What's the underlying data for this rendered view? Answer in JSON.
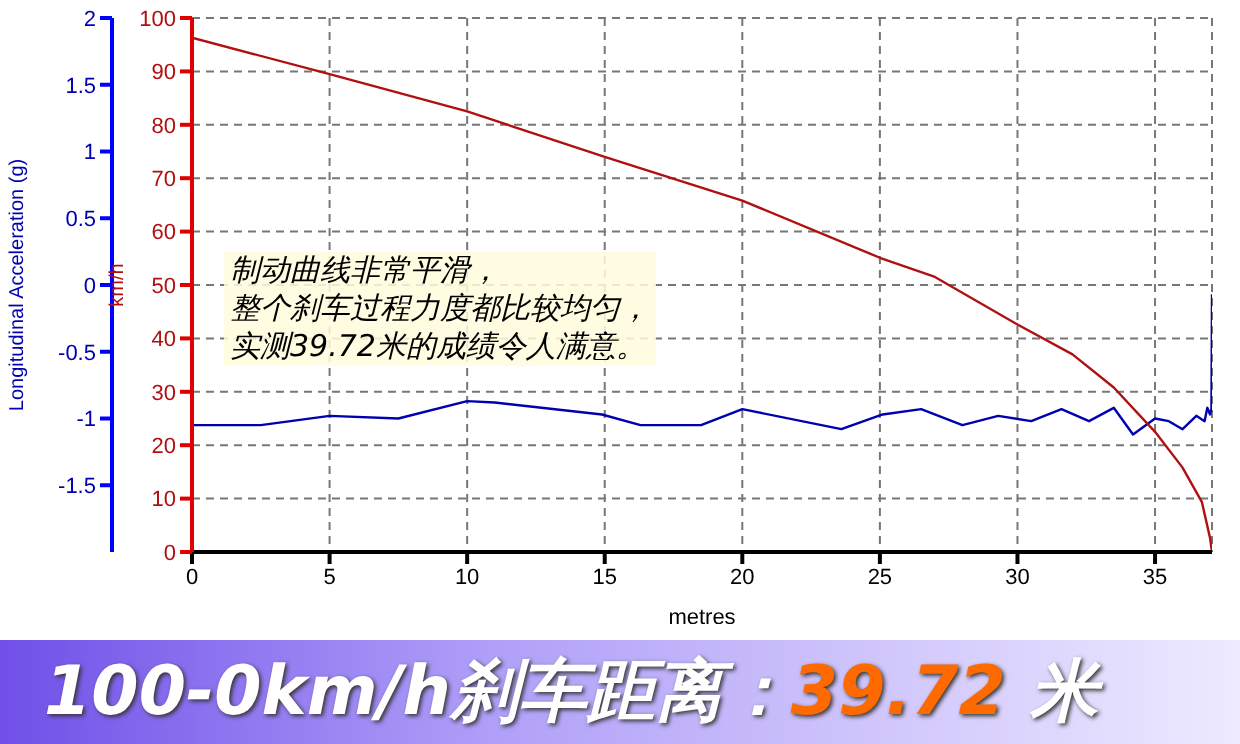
{
  "chart_data": {
    "type": "line",
    "title": "100-0km/h刹车距离：39.72 米",
    "xlabel": "metres",
    "ylabel": "Longitudinal Acceleration (g)",
    "y2label": "km/h",
    "annotations": [
      "制动曲线非常平滑，",
      "整个刹车过程力度都比较均匀，",
      "实测39.72米的成绩令人满意。"
    ],
    "xlim": [
      0,
      37.07
    ],
    "xticks": [
      0,
      5,
      10,
      15,
      20,
      25,
      30,
      35
    ],
    "ylim": [
      -2,
      2
    ],
    "yticks": [
      -1.5,
      -1,
      -0.5,
      0,
      0.5,
      1,
      1.5,
      2
    ],
    "y2lim": [
      0,
      100
    ],
    "y2ticks": [
      0,
      10,
      20,
      30,
      40,
      50,
      60,
      70,
      80,
      90,
      100
    ],
    "grid": true,
    "legend": false,
    "marker": "none",
    "line_style": "solid",
    "series": [
      {
        "color": "#0000b0",
        "x": [
          0,
          2.5,
          5,
          7.5,
          10,
          11,
          14.9,
          16.3,
          18.5,
          20,
          23.6,
          25.1,
          26.5,
          28,
          29.3,
          30.5,
          31.6,
          32.6,
          33.5,
          34.2,
          35,
          35.5,
          36,
          36.5,
          36.8,
          36.9,
          37,
          37.05,
          37.07
        ],
        "values": [
          -1.05,
          -1.05,
          -0.98,
          -1,
          -0.87,
          -0.88,
          -0.97,
          -1.05,
          -1.05,
          -0.93,
          -1.08,
          -0.97,
          -0.93,
          -1.05,
          -0.98,
          -1.02,
          -0.93,
          -1.02,
          -0.92,
          -1.12,
          -1,
          -1.02,
          -1.08,
          -0.98,
          -1.02,
          -0.92,
          -0.97,
          -0.93,
          -0.07
        ]
      },
      {
        "color": "#b01010",
        "axis": "y2",
        "x": [
          0,
          5,
          10,
          15,
          20,
          25,
          27,
          30,
          32,
          33.5,
          35,
          36,
          36.7,
          37,
          37.07
        ],
        "values": [
          96.3,
          89.5,
          82.5,
          74,
          65.8,
          55.1,
          51.5,
          42.6,
          37,
          30.8,
          22.5,
          15.8,
          9.4,
          2.6,
          0
        ]
      }
    ]
  }
}
